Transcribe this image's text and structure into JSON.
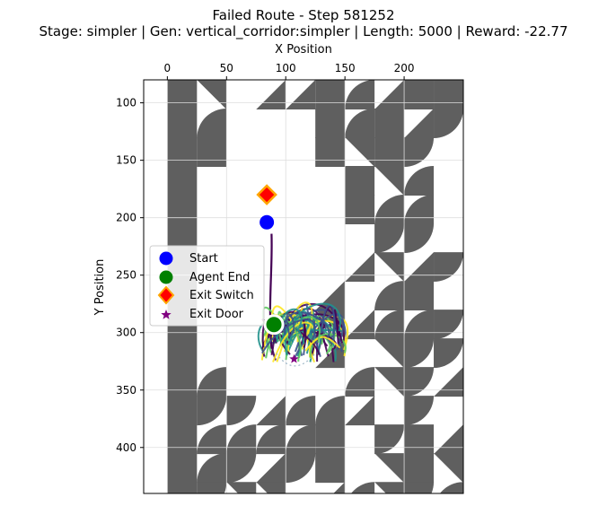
{
  "chart_data": {
    "type": "scatter",
    "title": "Failed Route - Step 581252",
    "subtitle": "Stage: simpler | Gen: vertical_corridor:simpler | Length: 5000 | Reward: -22.77",
    "xlabel": "X Position",
    "ylabel": "Y Position",
    "xlim": [
      -20,
      250
    ],
    "ylim": [
      440,
      80
    ],
    "x_axis_position": "top",
    "y_axis_inverted": true,
    "grid": true,
    "xticks": [
      0,
      50,
      100,
      150,
      200
    ],
    "yticks": [
      100,
      150,
      200,
      250,
      300,
      350,
      400
    ],
    "legend": {
      "placement": "center-left",
      "entries": [
        {
          "label": "Start",
          "marker": "circle",
          "color": "#0000ff"
        },
        {
          "label": "Agent End",
          "marker": "circle",
          "color": "#008000"
        },
        {
          "label": "Exit Switch",
          "marker": "diamond",
          "color": "#ff0000",
          "edge": "#ffa500"
        },
        {
          "label": "Exit Door",
          "marker": "star",
          "color": "#800080"
        }
      ]
    },
    "points": {
      "start": [
        84,
        204
      ],
      "agent_end": [
        90,
        293
      ],
      "exit_switch": [
        84,
        180
      ],
      "exit_door": [
        107,
        323
      ]
    },
    "trajectory_colormap": [
      "#440154",
      "#3b528b",
      "#21918c",
      "#5ec962",
      "#fde725"
    ],
    "wall_color": "#5f5f5f"
  }
}
